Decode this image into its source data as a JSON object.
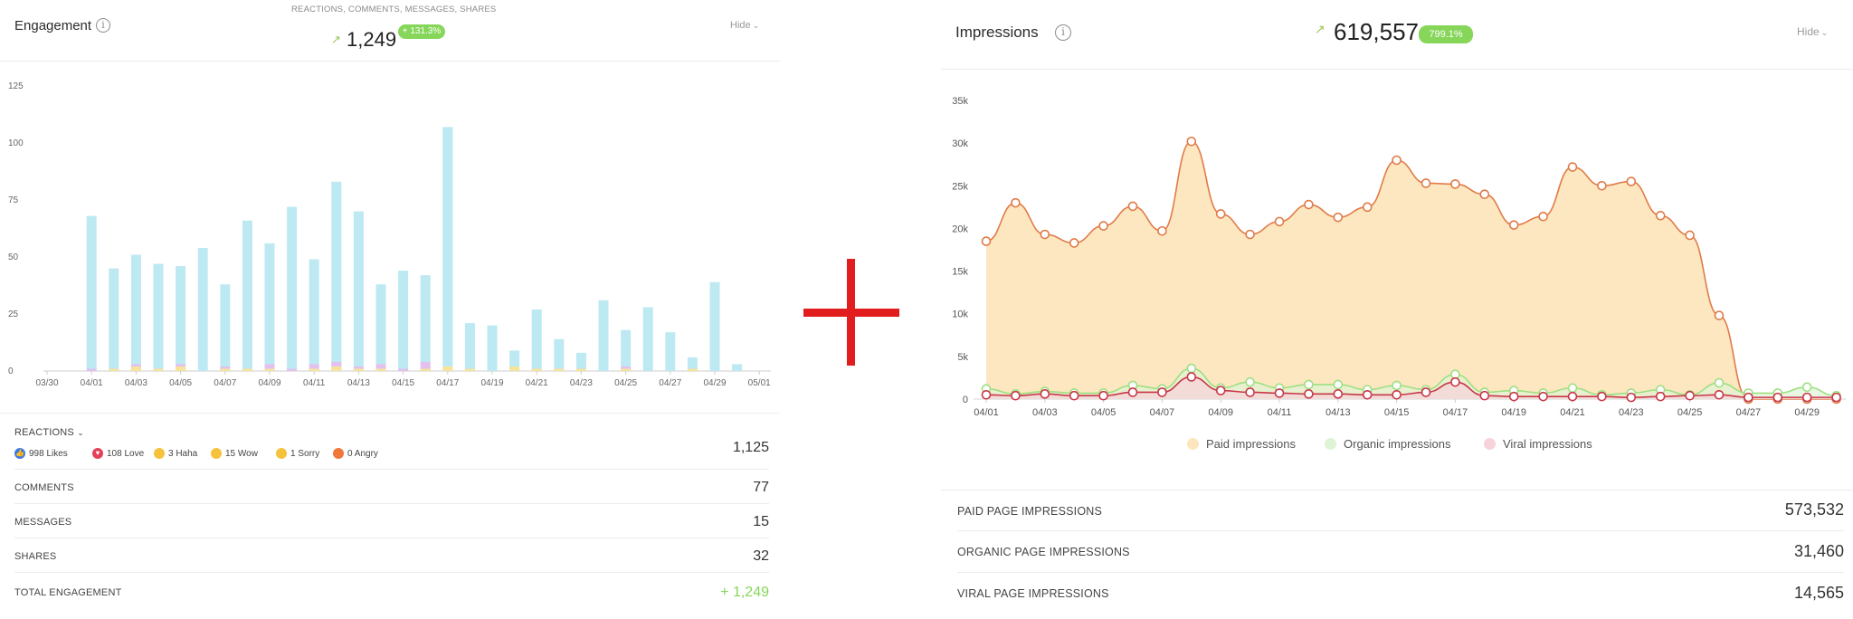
{
  "engagement": {
    "title": "Engagement",
    "info_icon": "i",
    "subtitle": "REACTIONS, COMMENTS, MESSAGES, SHARES",
    "trend_arrow": "↗",
    "total": "1,249",
    "change": "+ 131.3%",
    "hide_label": "Hide",
    "hide_chevron": "⌄",
    "reactions_label": "REACTIONS",
    "reactions_chevron": "⌄",
    "reactions": [
      {
        "label": "998 Likes",
        "icon": "like-icon",
        "glyph": "👍",
        "color": "#3b7be8"
      },
      {
        "label": "108 Love",
        "icon": "love-icon",
        "glyph": "♥",
        "color": "#e5405a"
      },
      {
        "label": "3 Haha",
        "icon": "haha-icon",
        "glyph": "",
        "color": "#f5c33b"
      },
      {
        "label": "15 Wow",
        "icon": "wow-icon",
        "glyph": "",
        "color": "#f5c33b"
      },
      {
        "label": "1 Sorry",
        "icon": "sorry-icon",
        "glyph": "",
        "color": "#f5c33b"
      },
      {
        "label": "0 Angry",
        "icon": "angry-icon",
        "glyph": "",
        "color": "#f0763a"
      }
    ],
    "reactions_value": "1,125",
    "rows": [
      {
        "label": "COMMENTS",
        "value": "77"
      },
      {
        "label": "MESSAGES",
        "value": "15"
      },
      {
        "label": "SHARES",
        "value": "32"
      }
    ],
    "total_row": {
      "label": "TOTAL ENGAGEMENT",
      "value": "+ 1,249"
    }
  },
  "impressions": {
    "title": "Impressions",
    "info_icon": "i",
    "trend_arrow": "↗",
    "total": "619,557",
    "change": "799.1%",
    "hide_label": "Hide",
    "hide_chevron": "⌄",
    "rows": [
      {
        "label": "PAID PAGE IMPRESSIONS",
        "value": "573,532"
      },
      {
        "label": "ORGANIC PAGE IMPRESSIONS",
        "value": "31,460"
      },
      {
        "label": "VIRAL PAGE IMPRESSIONS",
        "value": "14,565"
      }
    ]
  },
  "colors": {
    "bar_main": "#bde9f2",
    "bar_love": "#e2c1ef",
    "bar_haha": "#f7e49c",
    "paid_line": "#e07b48",
    "paid_fill": "#fde6bd",
    "organic_line": "#9edf83",
    "organic_fill": "#dff3d6",
    "viral_line": "#c8374a",
    "viral_fill": "#f6d3da",
    "positive": "#86d65a",
    "plus": "#e11d1d"
  },
  "chart_data": [
    {
      "type": "bar",
      "yticks": [
        0,
        25,
        50,
        75,
        100,
        125
      ],
      "ylim": [
        0,
        125
      ],
      "xtick_labels": [
        "03/30",
        "04/01",
        "04/03",
        "04/05",
        "04/07",
        "04/09",
        "04/11",
        "04/13",
        "04/15",
        "04/17",
        "04/19",
        "04/21",
        "04/23",
        "04/25",
        "04/27",
        "04/29",
        "05/01"
      ],
      "categories": [
        "03/30",
        "03/31",
        "04/01",
        "04/02",
        "04/03",
        "04/04",
        "04/05",
        "04/06",
        "04/07",
        "04/08",
        "04/09",
        "04/10",
        "04/11",
        "04/12",
        "04/13",
        "04/14",
        "04/15",
        "04/16",
        "04/17",
        "04/18",
        "04/19",
        "04/20",
        "04/21",
        "04/22",
        "04/23",
        "04/24",
        "04/25",
        "04/26",
        "04/27",
        "04/28",
        "04/29",
        "04/30",
        "05/01"
      ],
      "series": [
        {
          "values": [
            0,
            0,
            68,
            45,
            51,
            47,
            46,
            54,
            38,
            66,
            56,
            72,
            49,
            83,
            70,
            38,
            44,
            42,
            107,
            21,
            20,
            9,
            27,
            14,
            8,
            31,
            18,
            28,
            17,
            6,
            39,
            3,
            0
          ]
        },
        {
          "values": [
            0,
            0,
            1,
            1,
            3,
            1,
            3,
            0,
            2,
            1,
            3,
            1,
            3,
            4,
            2,
            3,
            1,
            4,
            1,
            1,
            0,
            0,
            1,
            1,
            1,
            0,
            2,
            0,
            0,
            0,
            0,
            0,
            0
          ]
        },
        {
          "values": [
            0,
            0,
            0,
            1,
            2,
            1,
            2,
            0,
            1,
            1,
            1,
            0,
            1,
            2,
            1,
            1,
            0,
            1,
            2,
            1,
            0,
            2,
            1,
            1,
            1,
            0,
            1,
            0,
            0,
            1,
            0,
            0,
            0
          ]
        }
      ]
    },
    {
      "type": "area",
      "yticks": [
        0,
        5000,
        10000,
        15000,
        20000,
        25000,
        30000,
        35000
      ],
      "ytick_labels": [
        "0",
        "5k",
        "10k",
        "15k",
        "20k",
        "25k",
        "30k",
        "35k"
      ],
      "ylim": [
        0,
        35000
      ],
      "xtick_labels": [
        "04/01",
        "04/03",
        "04/05",
        "04/07",
        "04/09",
        "04/11",
        "04/13",
        "04/15",
        "04/17",
        "04/19",
        "04/21",
        "04/23",
        "04/25",
        "04/27",
        "04/29"
      ],
      "x": [
        "04/01",
        "04/02",
        "04/03",
        "04/04",
        "04/05",
        "04/06",
        "04/07",
        "04/08",
        "04/09",
        "04/10",
        "04/11",
        "04/12",
        "04/13",
        "04/14",
        "04/15",
        "04/16",
        "04/17",
        "04/18",
        "04/19",
        "04/20",
        "04/21",
        "04/22",
        "04/23",
        "04/24",
        "04/25",
        "04/26",
        "04/27",
        "04/28",
        "04/29",
        "04/30"
      ],
      "series": [
        {
          "name": "Paid impressions",
          "values": [
            18500,
            23000,
            19300,
            18300,
            20300,
            22600,
            19700,
            30200,
            21700,
            19300,
            20800,
            22800,
            21300,
            22500,
            28000,
            25300,
            25200,
            24000,
            20400,
            21400,
            27200,
            25000,
            25500,
            21500,
            19200,
            9800,
            0,
            0,
            0,
            0
          ]
        },
        {
          "name": "Organic impressions",
          "values": [
            1200,
            600,
            900,
            700,
            700,
            1600,
            1200,
            3600,
            1300,
            2000,
            1300,
            1700,
            1700,
            1100,
            1600,
            1100,
            2900,
            800,
            1000,
            700,
            1300,
            500,
            700,
            1100,
            500,
            1900,
            700,
            700,
            1400,
            400
          ]
        },
        {
          "name": "Viral impressions",
          "values": [
            500,
            400,
            600,
            400,
            400,
            800,
            800,
            2600,
            1000,
            800,
            700,
            600,
            600,
            500,
            500,
            800,
            2000,
            400,
            300,
            300,
            300,
            300,
            200,
            300,
            400,
            500,
            200,
            200,
            200,
            200
          ]
        }
      ]
    }
  ]
}
